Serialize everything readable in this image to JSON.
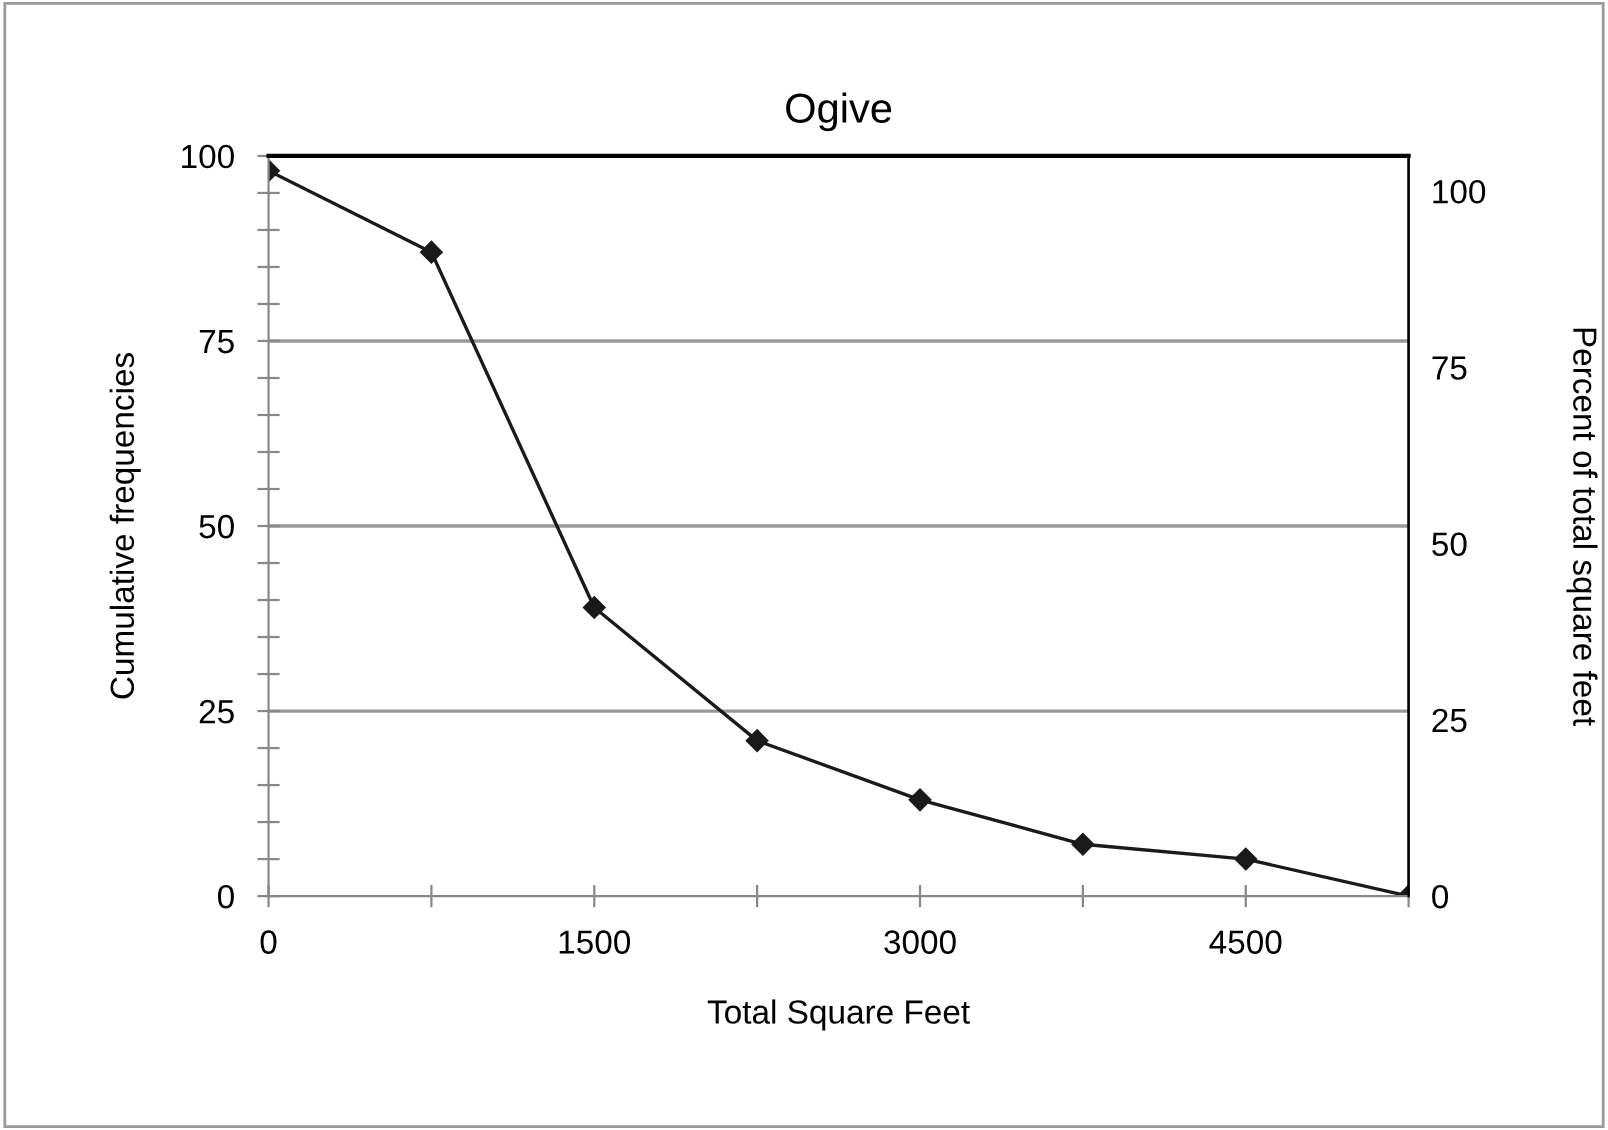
{
  "chart_data": {
    "type": "line",
    "title": "Ogive",
    "xlabel": "Total Square Feet",
    "ylabel": "Cumulative frequencies",
    "y2label": "Percent of total square feet",
    "x": [
      0,
      750,
      1500,
      2250,
      3000,
      3750,
      4500,
      5250
    ],
    "series": [
      {
        "color": "#1a1a1a",
        "values": [
          98,
          87,
          39,
          21,
          13,
          7,
          5,
          0
        ]
      }
    ],
    "xlim": [
      0,
      5250
    ],
    "xticks": [
      0,
      {
        "value": 750,
        "label": null
      },
      1500,
      {
        "value": 2250,
        "label": null
      },
      3000,
      {
        "value": 3750,
        "label": null
      },
      4500,
      {
        "value": 5250,
        "label": null
      }
    ],
    "ylim": [
      0,
      100
    ],
    "yticks": [
      0,
      {
        "value": 5,
        "label": null
      },
      {
        "value": 10,
        "label": null
      },
      {
        "value": 15,
        "label": null
      },
      {
        "value": 20,
        "label": null
      },
      25,
      {
        "value": 30,
        "label": null
      },
      {
        "value": 35,
        "label": null
      },
      {
        "value": 40,
        "label": null
      },
      {
        "value": 45,
        "label": null
      },
      50,
      {
        "value": 55,
        "label": null
      },
      {
        "value": 60,
        "label": null
      },
      {
        "value": 65,
        "label": null
      },
      {
        "value": 70,
        "label": null
      },
      75,
      {
        "value": 80,
        "label": null
      },
      {
        "value": 85,
        "label": null
      },
      {
        "value": 90,
        "label": null
      },
      {
        "value": 95,
        "label": null
      },
      100
    ],
    "y2lim": [
      0,
      105
    ],
    "y2ticks": [
      0,
      25,
      50,
      75,
      100
    ],
    "grid": "y",
    "marker": "diamond",
    "line_style": "solid"
  }
}
